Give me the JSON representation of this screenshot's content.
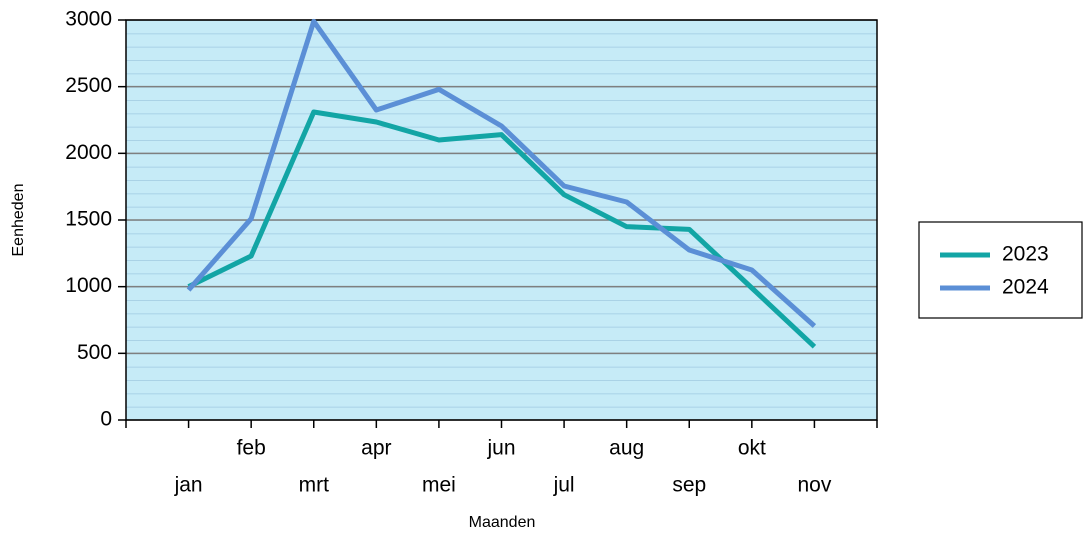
{
  "chart_data": {
    "type": "line",
    "x_label": "Maanden",
    "y_label": "Eenheden",
    "categories": [
      "jan",
      "feb",
      "mrt",
      "apr",
      "mei",
      "jun",
      "jul",
      "aug",
      "sep",
      "okt",
      "nov"
    ],
    "series": [
      {
        "name": "2023",
        "color": "#12a5a5",
        "values": [
          1000,
          1230,
          2310,
          2235,
          2100,
          2140,
          1690,
          1450,
          1430,
          990,
          550
        ]
      },
      {
        "name": "2024",
        "color": "#5b8fd6",
        "values": [
          975,
          1510,
          2990,
          2325,
          2480,
          2205,
          1755,
          1635,
          1275,
          1125,
          705
        ]
      }
    ],
    "ylim": [
      0,
      3000
    ],
    "yticks": [
      0,
      500,
      1000,
      1500,
      2000,
      2500,
      3000
    ],
    "grid": true,
    "legend": "right"
  }
}
